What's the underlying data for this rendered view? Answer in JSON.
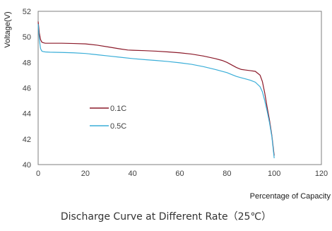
{
  "caption": "Discharge Curve at Different Rate（25℃）",
  "colors": {
    "series_0": "#8b1a2a",
    "series_1": "#3aaed8",
    "axis": "#7f7f7f"
  },
  "chart_data": {
    "type": "line",
    "title": "",
    "xlabel": "Percentage of Capacity",
    "ylabel": "Voltage(V)",
    "xlim": [
      0,
      120
    ],
    "ylim": [
      40,
      52
    ],
    "xticks": [
      0,
      20,
      40,
      60,
      80,
      100,
      120
    ],
    "yticks": [
      40,
      42,
      44,
      46,
      48,
      50,
      52
    ],
    "grid": false,
    "legend": "center-left",
    "series": [
      {
        "name": "0.1C",
        "x": [
          0,
          0.5,
          1.0,
          1.5,
          2,
          3,
          5,
          10,
          15,
          20,
          25,
          30,
          35,
          38,
          40,
          45,
          50,
          55,
          60,
          65,
          70,
          75,
          78,
          80,
          82,
          84,
          86,
          88,
          90,
          92,
          94,
          95,
          96,
          97,
          98,
          99,
          100
        ],
        "y": [
          51.2,
          50.3,
          49.8,
          49.6,
          49.55,
          49.5,
          49.5,
          49.5,
          49.48,
          49.45,
          49.35,
          49.2,
          49.05,
          48.97,
          48.95,
          48.92,
          48.88,
          48.82,
          48.75,
          48.65,
          48.5,
          48.3,
          48.15,
          48.0,
          47.8,
          47.6,
          47.45,
          47.4,
          47.35,
          47.3,
          47.0,
          46.5,
          45.6,
          44.5,
          43.5,
          42.3,
          40.7
        ]
      },
      {
        "name": "0.5C",
        "x": [
          0,
          0.5,
          1.0,
          1.5,
          2,
          3,
          5,
          10,
          15,
          20,
          25,
          30,
          35,
          40,
          45,
          50,
          55,
          60,
          65,
          70,
          75,
          80,
          82,
          84,
          86,
          88,
          90,
          92,
          94,
          95,
          96,
          97,
          98,
          99,
          100
        ],
        "y": [
          51.0,
          49.8,
          49.1,
          48.9,
          48.85,
          48.82,
          48.8,
          48.78,
          48.75,
          48.7,
          48.6,
          48.5,
          48.4,
          48.3,
          48.22,
          48.15,
          48.07,
          47.97,
          47.85,
          47.67,
          47.45,
          47.2,
          47.05,
          46.9,
          46.8,
          46.7,
          46.6,
          46.45,
          46.1,
          45.7,
          45.0,
          44.2,
          43.3,
          42.2,
          40.5
        ]
      }
    ]
  }
}
